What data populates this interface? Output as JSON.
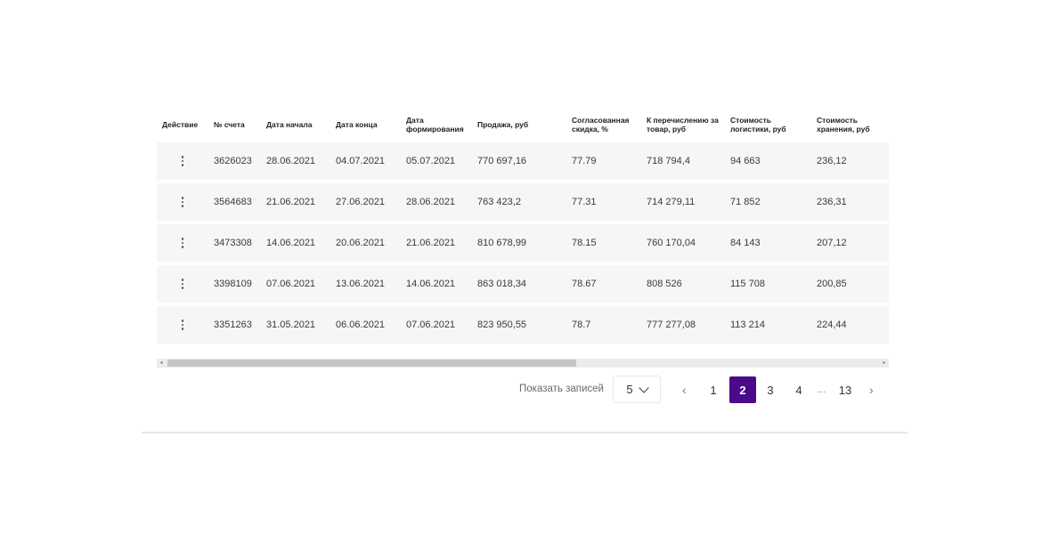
{
  "table": {
    "headers": [
      "Действие",
      "№ счета",
      "Дата начала",
      "Дата конца",
      "Дата формирования",
      "Продажа, руб",
      "Согласованная скидка, %",
      "К перечислению за товар, руб",
      "Стоимость логистики, руб",
      "Стоимость хранения, руб"
    ],
    "rows": [
      [
        "3626023",
        "28.06.2021",
        "04.07.2021",
        "05.07.2021",
        "770 697,16",
        "77.79",
        "718 794,4",
        "94 663",
        "236,12"
      ],
      [
        "3564683",
        "21.06.2021",
        "27.06.2021",
        "28.06.2021",
        "763 423,2",
        "77.31",
        "714 279,11",
        "71 852",
        "236,31"
      ],
      [
        "3473308",
        "14.06.2021",
        "20.06.2021",
        "21.06.2021",
        "810 678,99",
        "78.15",
        "760 170,04",
        "84 143",
        "207,12"
      ],
      [
        "3398109",
        "07.06.2021",
        "13.06.2021",
        "14.06.2021",
        "863 018,34",
        "78.67",
        "808 526",
        "115 708",
        "200,85"
      ],
      [
        "3351263",
        "31.05.2021",
        "06.06.2021",
        "07.06.2021",
        "823 950,55",
        "78.7",
        "777 277,08",
        "113 214",
        "224,44"
      ]
    ],
    "action_icon": "kebab-menu-icon"
  },
  "scrollbar": {
    "left_arrow": "◂",
    "right_arrow": "▸"
  },
  "pagination": {
    "show_label": "Показать записей",
    "per_page_value": "5",
    "prev_arrow": "‹",
    "next_arrow": "›",
    "pages": [
      "1",
      "2",
      "3",
      "4"
    ],
    "ellipsis": "...",
    "last_page": "13",
    "active_page": "2"
  },
  "colors": {
    "active_page": "#4b0a8a",
    "row_background": "#f6f6f9"
  }
}
